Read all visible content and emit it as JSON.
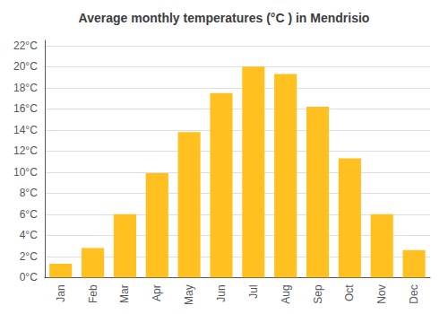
{
  "chart_data": {
    "type": "bar",
    "title": "Average monthly temperatures (°C ) in Mendrisio",
    "categories": [
      "Jan",
      "Feb",
      "Mar",
      "Apr",
      "May",
      "Jun",
      "Jul",
      "Aug",
      "Sep",
      "Oct",
      "Nov",
      "Dec"
    ],
    "values": [
      1.3,
      2.8,
      6.0,
      9.9,
      13.8,
      17.5,
      20.0,
      19.3,
      16.2,
      11.3,
      6.0,
      2.6
    ],
    "color": "#FFC020",
    "ylim": [
      0,
      22.5
    ],
    "yticks": [
      {
        "value": 0,
        "label": "0°C"
      },
      {
        "value": 2,
        "label": "2°C"
      },
      {
        "value": 4,
        "label": "4°C"
      },
      {
        "value": 6,
        "label": "6°C"
      },
      {
        "value": 8,
        "label": "8°C"
      },
      {
        "value": 10,
        "label": "10°C"
      },
      {
        "value": 12,
        "label": "12°C"
      },
      {
        "value": 14,
        "label": "14°C"
      },
      {
        "value": 16,
        "label": "16°C"
      },
      {
        "value": 18,
        "label": "18°C"
      },
      {
        "value": 20,
        "label": "20°C"
      },
      {
        "value": 22,
        "label": "22°C"
      }
    ],
    "grid": true
  }
}
